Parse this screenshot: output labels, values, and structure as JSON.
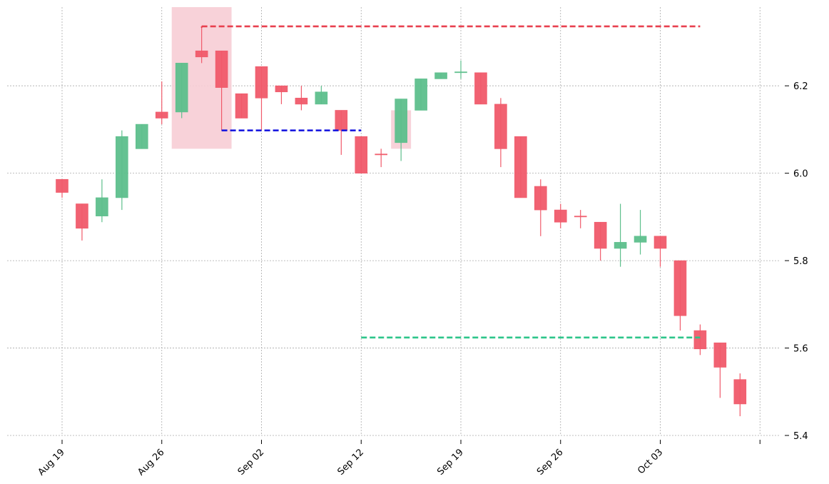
{
  "chart_data": {
    "type": "candlestick",
    "title": "",
    "xlabel": "",
    "ylabel": "",
    "ylim": [
      5.4,
      6.38
    ],
    "yticks": [
      5.4,
      5.6,
      5.8,
      6.0,
      6.2
    ],
    "ytick_labels": [
      "5.4",
      "5.6",
      "5.8",
      "6.0",
      "6.2"
    ],
    "xtick_labels": [
      "Aug 19",
      "Aug 26",
      "Sep 02",
      "Sep 12",
      "Sep 19",
      "Sep 26",
      "Oct 03",
      ""
    ],
    "xtick_index": [
      0,
      5,
      10,
      15,
      20,
      25,
      30,
      35
    ],
    "grid": true,
    "colors": {
      "up": "#5dbf8c",
      "down": "#f05a6a",
      "highlight": "#f7cdd5",
      "resistance": "#e8404f",
      "support": "#2dc58a",
      "midline": "#1a1ae0",
      "grid": "#aaaaaa"
    },
    "candles": [
      {
        "date": "Aug 19",
        "open": 5.986,
        "high": 5.986,
        "low": 5.944,
        "close": 5.956
      },
      {
        "date": "Aug 20",
        "open": 5.93,
        "high": 5.93,
        "low": 5.846,
        "close": 5.874
      },
      {
        "date": "Aug 21",
        "open": 5.902,
        "high": 5.986,
        "low": 5.888,
        "close": 5.944
      },
      {
        "date": "Aug 22",
        "open": 5.944,
        "high": 6.098,
        "low": 5.916,
        "close": 6.084
      },
      {
        "date": "Aug 23",
        "open": 6.056,
        "high": 6.112,
        "low": 6.056,
        "close": 6.112
      },
      {
        "date": "Aug 26",
        "open": 6.14,
        "high": 6.21,
        "low": 6.112,
        "close": 6.126
      },
      {
        "date": "Aug 27",
        "open": 6.14,
        "high": 6.252,
        "low": 6.126,
        "close": 6.252
      },
      {
        "date": "Aug 28",
        "open": 6.28,
        "high": 6.336,
        "low": 6.252,
        "close": 6.266
      },
      {
        "date": "Aug 29",
        "open": 6.28,
        "high": 6.28,
        "low": 6.098,
        "close": 6.196
      },
      {
        "date": "Aug 30",
        "open": 6.182,
        "high": 6.182,
        "low": 6.126,
        "close": 6.126
      },
      {
        "date": "Sep 02",
        "open": 6.244,
        "high": 6.244,
        "low": 6.098,
        "close": 6.172
      },
      {
        "date": "Sep 03",
        "open": 6.2,
        "high": 6.2,
        "low": 6.158,
        "close": 6.186
      },
      {
        "date": "Sep 04",
        "open": 6.172,
        "high": 6.2,
        "low": 6.144,
        "close": 6.158
      },
      {
        "date": "Sep 05",
        "open": 6.158,
        "high": 6.2,
        "low": 6.158,
        "close": 6.186
      },
      {
        "date": "Sep 06",
        "open": 6.144,
        "high": 6.144,
        "low": 6.042,
        "close": 6.098
      },
      {
        "date": "Sep 12",
        "open": 6.084,
        "high": 6.084,
        "low": 6.0,
        "close": 6.0
      },
      {
        "date": "Sep 13",
        "open": 6.044,
        "high": 6.056,
        "low": 6.014,
        "close": 6.042
      },
      {
        "date": "Sep 16",
        "open": 6.07,
        "high": 6.17,
        "low": 6.028,
        "close": 6.17
      },
      {
        "date": "Sep 17",
        "open": 6.144,
        "high": 6.216,
        "low": 6.144,
        "close": 6.216
      },
      {
        "date": "Sep 18",
        "open": 6.216,
        "high": 6.23,
        "low": 6.216,
        "close": 6.23
      },
      {
        "date": "Sep 19",
        "open": 6.23,
        "high": 6.258,
        "low": 6.216,
        "close": 6.232
      },
      {
        "date": "Sep 20",
        "open": 6.23,
        "high": 6.23,
        "low": 6.158,
        "close": 6.158
      },
      {
        "date": "Sep 23",
        "open": 6.158,
        "high": 6.172,
        "low": 6.014,
        "close": 6.056
      },
      {
        "date": "Sep 24",
        "open": 6.084,
        "high": 6.084,
        "low": 5.944,
        "close": 5.944
      },
      {
        "date": "Sep 25",
        "open": 5.97,
        "high": 5.986,
        "low": 5.856,
        "close": 5.916
      },
      {
        "date": "Sep 26",
        "open": 5.916,
        "high": 5.93,
        "low": 5.874,
        "close": 5.888
      },
      {
        "date": "Sep 27",
        "open": 5.902,
        "high": 5.916,
        "low": 5.874,
        "close": 5.9
      },
      {
        "date": "Sep 30",
        "open": 5.888,
        "high": 5.888,
        "low": 5.8,
        "close": 5.828
      },
      {
        "date": "Oct 01",
        "open": 5.828,
        "high": 5.93,
        "low": 5.786,
        "close": 5.842
      },
      {
        "date": "Oct 02",
        "open": 5.842,
        "high": 5.916,
        "low": 5.814,
        "close": 5.856
      },
      {
        "date": "Oct 03",
        "open": 5.856,
        "high": 5.856,
        "low": 5.786,
        "close": 5.828
      },
      {
        "date": "Oct 04",
        "open": 5.8,
        "high": 5.8,
        "low": 5.64,
        "close": 5.674
      },
      {
        "date": "Oct 07",
        "open": 5.64,
        "high": 5.654,
        "low": 5.584,
        "close": 5.598
      },
      {
        "date": "Oct 08",
        "open": 5.612,
        "high": 5.612,
        "low": 5.486,
        "close": 5.556
      },
      {
        "date": "Oct 09",
        "open": 5.528,
        "high": 5.542,
        "low": 5.444,
        "close": 5.472
      }
    ],
    "highlight_zones": [
      {
        "from_index": 5.5,
        "to_index": 8.5,
        "y_low": 6.056,
        "y_high": 6.38
      },
      {
        "from_index": 16.5,
        "to_index": 17.5,
        "y_low": 6.056,
        "y_high": 6.144
      }
    ],
    "hlines": [
      {
        "name": "resistance",
        "value": 6.336,
        "from_index": 7,
        "to_index": 32,
        "dashed": true
      },
      {
        "name": "midline",
        "value": 6.098,
        "from_index": 8,
        "to_index": 15,
        "dashed": true
      },
      {
        "name": "support",
        "value": 5.624,
        "from_index": 15,
        "to_index": 32,
        "dashed": true
      }
    ]
  }
}
